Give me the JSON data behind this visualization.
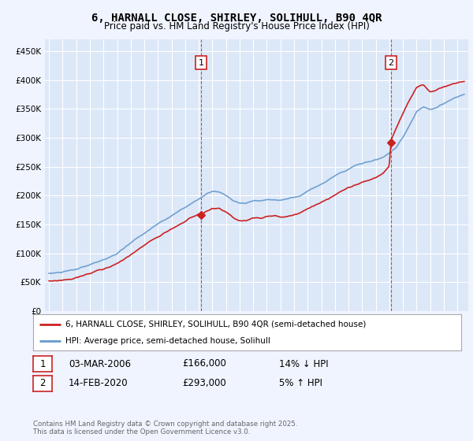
{
  "title": "6, HARNALL CLOSE, SHIRLEY, SOLIHULL, B90 4QR",
  "subtitle": "Price paid vs. HM Land Registry's House Price Index (HPI)",
  "ylim": [
    0,
    470000
  ],
  "yticks": [
    0,
    50000,
    100000,
    150000,
    200000,
    250000,
    300000,
    350000,
    400000,
    450000
  ],
  "ytick_labels": [
    "£0",
    "£50K",
    "£100K",
    "£150K",
    "£200K",
    "£250K",
    "£300K",
    "£350K",
    "£400K",
    "£450K"
  ],
  "background_color": "#f0f4ff",
  "plot_bg_color": "#dce8f8",
  "grid_color": "#ffffff",
  "hpi_color": "#6699cc",
  "price_color": "#cc2222",
  "marker1_x": 2006.17,
  "marker2_x": 2020.12,
  "marker1_price": 166000,
  "marker2_price": 293000,
  "legend_line1": "6, HARNALL CLOSE, SHIRLEY, SOLIHULL, B90 4QR (semi-detached house)",
  "legend_line2": "HPI: Average price, semi-detached house, Solihull",
  "footer": "Contains HM Land Registry data © Crown copyright and database right 2025.\nThis data is licensed under the Open Government Licence v3.0.",
  "title_fontsize": 10,
  "subtitle_fontsize": 8.5
}
